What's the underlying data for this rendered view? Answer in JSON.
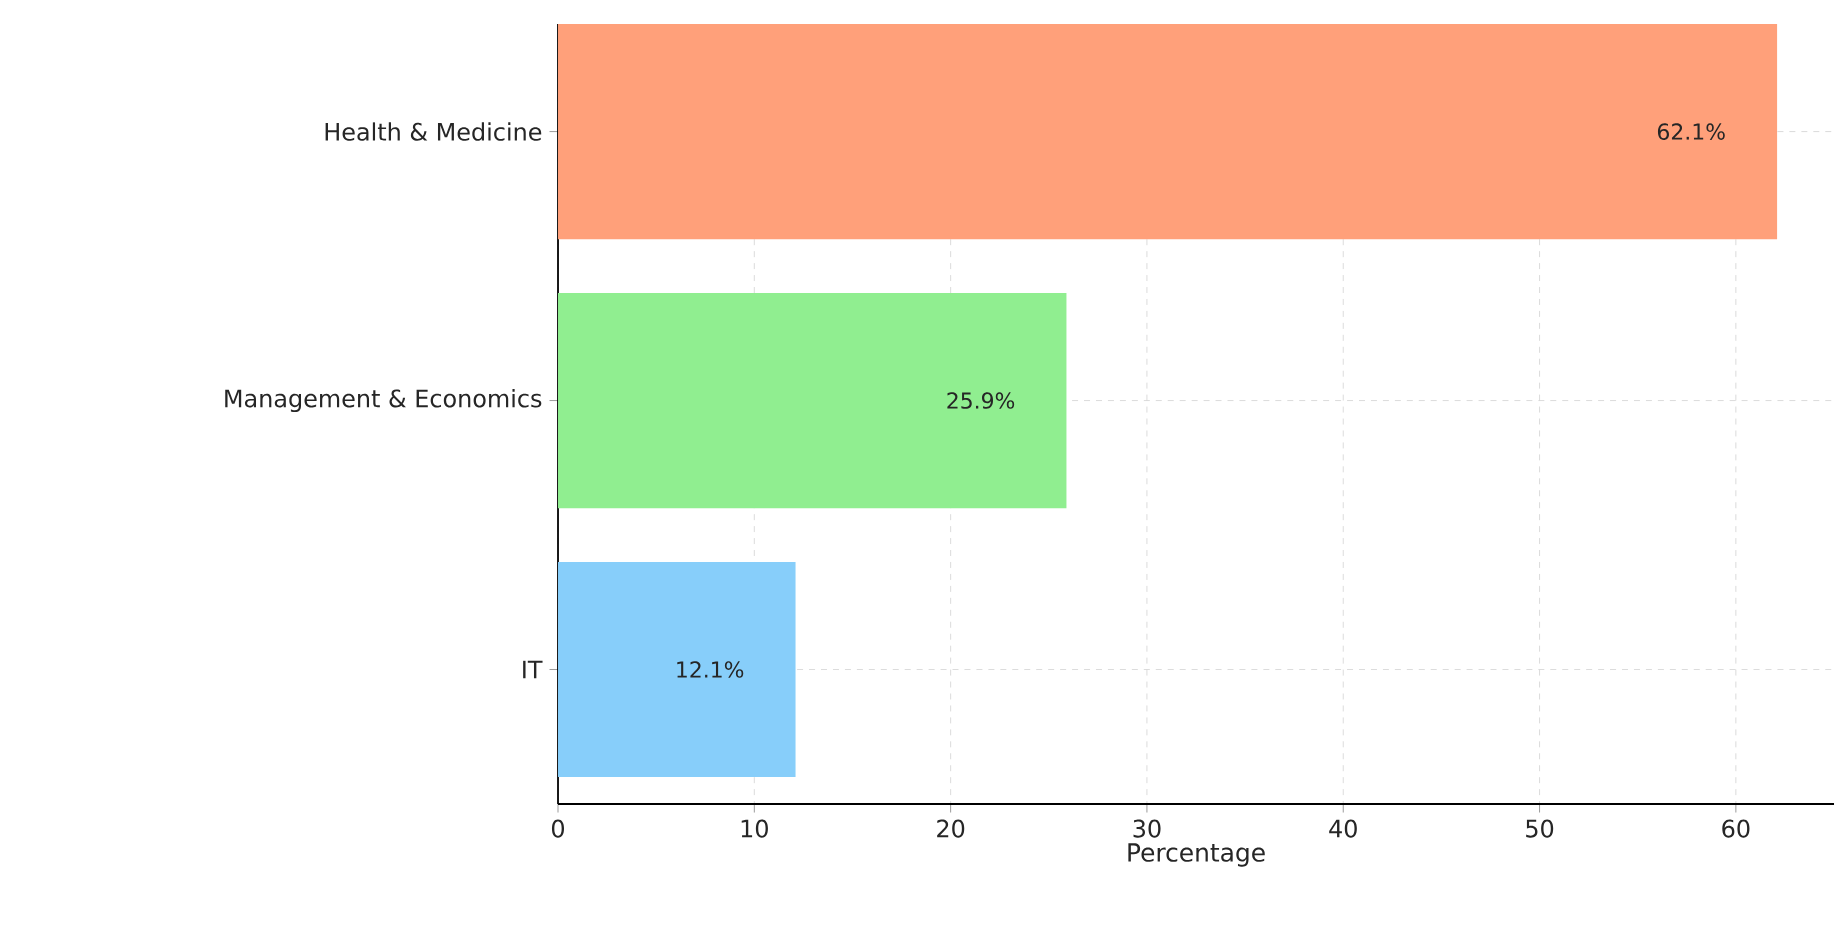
{
  "chart_data": {
    "type": "bar",
    "orientation": "horizontal",
    "categories": [
      "Health & Medicine",
      "Management & Economics",
      "IT"
    ],
    "values": [
      62.1,
      25.9,
      12.1
    ],
    "colors": [
      "#ffa07a",
      "#90ee90",
      "#87cefa"
    ],
    "value_labels": [
      "62.1%",
      "25.9%",
      "12.1%"
    ],
    "xlim": [
      0,
      65
    ],
    "xticks": [
      0,
      10,
      20,
      30,
      40,
      50,
      60
    ],
    "xlabel": "Percentage",
    "grid": true
  }
}
